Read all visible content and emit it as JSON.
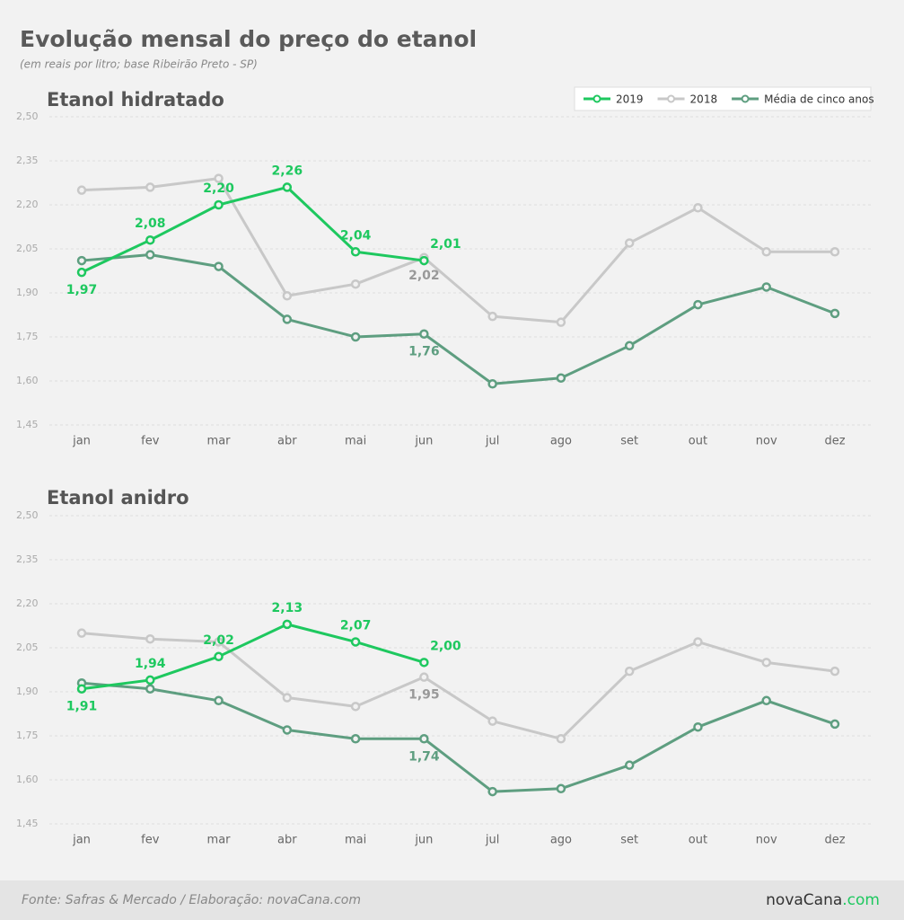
{
  "title": "Evolução mensal do preço do etanol",
  "subtitle": "(em reais por litro; base Ribeirão Preto - SP)",
  "source": "Fonte: Safras & Mercado / Elaboração: novaCana.com",
  "logo": {
    "name": "novaCana",
    "suffix": ".com"
  },
  "chart_data": [
    {
      "type": "line",
      "title": "Etanol hidratado",
      "categories": [
        "jan",
        "fev",
        "mar",
        "abr",
        "mai",
        "jun",
        "jul",
        "ago",
        "set",
        "out",
        "nov",
        "dez"
      ],
      "ylim": [
        1.45,
        2.5
      ],
      "yticks": [
        {
          "value": 1.45,
          "label": "1,45"
        },
        {
          "value": 1.6,
          "label": "1,60"
        },
        {
          "value": 1.75,
          "label": "1,75"
        },
        {
          "value": 1.9,
          "label": "1,90"
        },
        {
          "value": 2.05,
          "label": "2,05"
        },
        {
          "value": 2.2,
          "label": "2,20"
        },
        {
          "value": 2.35,
          "label": "2,35"
        },
        {
          "value": 2.5,
          "label": "2,50"
        }
      ],
      "grid": true,
      "legend": "top-right",
      "series": [
        {
          "name": "2019",
          "color": "#1ec85f",
          "values": [
            1.97,
            2.08,
            2.2,
            2.26,
            2.04,
            2.01,
            null,
            null,
            null,
            null,
            null,
            null
          ],
          "value_labels": [
            "1,97",
            "2,08",
            "2,20",
            "2,26",
            "2,04",
            "2,01",
            null,
            null,
            null,
            null,
            null,
            null
          ]
        },
        {
          "name": "2018",
          "color": "#c8c8c8",
          "values": [
            2.25,
            2.26,
            2.29,
            1.89,
            1.93,
            2.02,
            1.82,
            1.8,
            2.07,
            2.19,
            2.04,
            2.04
          ],
          "value_labels": [
            null,
            null,
            null,
            null,
            null,
            "2,02",
            null,
            null,
            null,
            null,
            null,
            null
          ]
        },
        {
          "name": "Média de cinco anos",
          "color": "#5e9e80",
          "values": [
            2.01,
            2.03,
            1.99,
            1.81,
            1.75,
            1.76,
            1.59,
            1.61,
            1.72,
            1.86,
            1.92,
            1.83
          ],
          "value_labels": [
            null,
            null,
            null,
            null,
            null,
            "1,76",
            null,
            null,
            null,
            null,
            null,
            null
          ]
        }
      ]
    },
    {
      "type": "line",
      "title": "Etanol anidro",
      "categories": [
        "jan",
        "fev",
        "mar",
        "abr",
        "mai",
        "jun",
        "jul",
        "ago",
        "set",
        "out",
        "nov",
        "dez"
      ],
      "ylim": [
        1.45,
        2.5
      ],
      "yticks": [
        {
          "value": 1.45,
          "label": "1,45"
        },
        {
          "value": 1.6,
          "label": "1,60"
        },
        {
          "value": 1.75,
          "label": "1,75"
        },
        {
          "value": 1.9,
          "label": "1,90"
        },
        {
          "value": 2.05,
          "label": "2,05"
        },
        {
          "value": 2.2,
          "label": "2,20"
        },
        {
          "value": 2.35,
          "label": "2,35"
        },
        {
          "value": 2.5,
          "label": "2,50"
        }
      ],
      "grid": true,
      "series": [
        {
          "color": "#1ec85f",
          "values": [
            1.91,
            1.94,
            2.02,
            2.13,
            2.07,
            2.0,
            null,
            null,
            null,
            null,
            null,
            null
          ],
          "value_labels": [
            "1,91",
            "1,94",
            "2,02",
            "2,13",
            "2,07",
            "2,00",
            null,
            null,
            null,
            null,
            null,
            null
          ]
        },
        {
          "color": "#c8c8c8",
          "values": [
            2.1,
            2.08,
            2.07,
            1.88,
            1.85,
            1.95,
            1.8,
            1.74,
            1.97,
            2.07,
            2.0,
            1.97
          ],
          "value_labels": [
            null,
            null,
            null,
            null,
            null,
            "1,95",
            null,
            null,
            null,
            null,
            null,
            null
          ]
        },
        {
          "color": "#5e9e80",
          "values": [
            1.93,
            1.91,
            1.87,
            1.77,
            1.74,
            1.74,
            1.56,
            1.57,
            1.65,
            1.78,
            1.87,
            1.79
          ],
          "value_labels": [
            null,
            null,
            null,
            null,
            null,
            "1,74",
            null,
            null,
            null,
            null,
            null,
            null
          ]
        }
      ]
    }
  ]
}
